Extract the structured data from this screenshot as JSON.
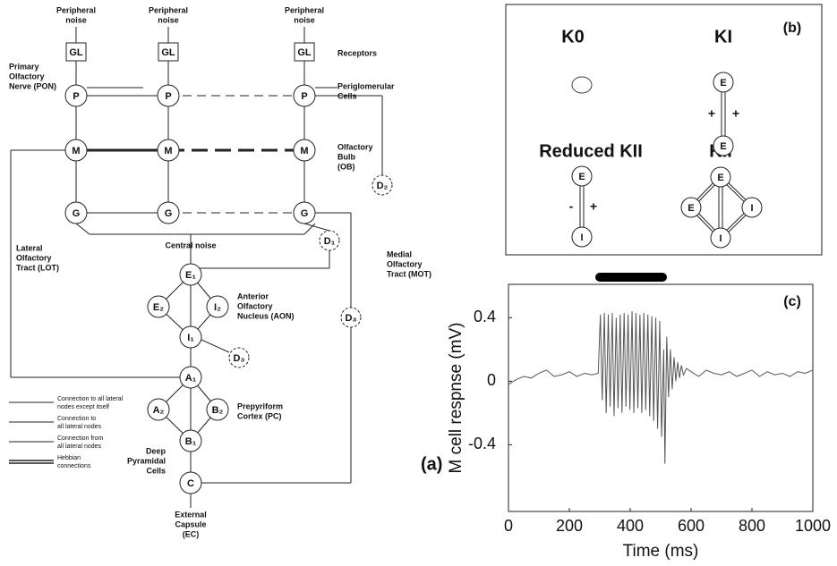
{
  "panel_a": {
    "labels": {
      "noise_1": [
        "Peripheral",
        "noise"
      ],
      "noise_2": [
        "Peripheral",
        "noise"
      ],
      "noise_3": [
        "Peripheral",
        "noise"
      ],
      "receptors": [
        "Receptors"
      ],
      "pon": [
        "Primary",
        "Olfactory",
        "Nerve (PON)"
      ],
      "pg": [
        "Periglomerular",
        "Cells"
      ],
      "ob": [
        "Olfactory",
        "Bulb",
        "(OB)"
      ],
      "lot": [
        "Lateral",
        "Olfactory",
        "Tract (LOT)"
      ],
      "central": [
        "Central noise"
      ],
      "mot": [
        "Medial",
        "Olfactory",
        "Tract (MOT)"
      ],
      "aon": [
        "Anterior",
        "Olfactory",
        "Nucleus (AON)"
      ],
      "pc": [
        "Prepyriform",
        "Cortex (PC)"
      ],
      "deep": [
        "Deep",
        "Pyramidal",
        "Cells"
      ],
      "ec": [
        "External",
        "Capsule",
        "(EC)"
      ]
    },
    "nodes": [
      "GL",
      "GL",
      "GL",
      "P",
      "P",
      "P",
      "M",
      "M",
      "M",
      "G",
      "G",
      "G",
      "D₂",
      "D₁",
      "D₃",
      "D₃",
      "E₁",
      "E₂",
      "I₂",
      "I₁",
      "A₁",
      "A₂",
      "B₂",
      "B₁",
      "C"
    ],
    "legend": [
      [
        "Connection to all lateral",
        "nodes except itself"
      ],
      [
        "Connection to",
        "all lateral nodes"
      ],
      [
        "Connection from",
        "all lateral nodes"
      ],
      [
        "Hebbian",
        "connections"
      ]
    ],
    "panel_label": "(a)"
  },
  "panel_b": {
    "titles": [
      "K0",
      "KI",
      "Reduced KII",
      "KII"
    ],
    "panel_label": "(b)",
    "nodes": [
      "E",
      "E",
      "E",
      "I",
      "E",
      "E",
      "I",
      "I"
    ],
    "signs": [
      "+",
      "+",
      "-",
      "+"
    ]
  },
  "chart_data": {
    "type": "line",
    "panel_label": "(c)",
    "x_label": "Time (ms)",
    "y_label": "M cell respnse (mV)",
    "xlim": [
      0,
      1000
    ],
    "ylim": [
      -0.82,
      0.61
    ],
    "xticks": [
      0,
      200,
      400,
      600,
      800,
      1000
    ],
    "yticks": [
      0.4,
      0,
      -0.4
    ],
    "series": [
      {
        "color": "#555555",
        "x": [
          0,
          25,
          50,
          75,
          100,
          125,
          150,
          175,
          200,
          225,
          250,
          275,
          295,
          302,
          308,
          315,
          321,
          328,
          334,
          341,
          347,
          354,
          360,
          367,
          373,
          380,
          386,
          393,
          399,
          406,
          412,
          419,
          425,
          432,
          438,
          445,
          451,
          458,
          464,
          471,
          477,
          484,
          490,
          497,
          503,
          510,
          514,
          520,
          526,
          532,
          538,
          544,
          550,
          556,
          562,
          568,
          575,
          585,
          600,
          625,
          650,
          675,
          700,
          725,
          750,
          775,
          800,
          825,
          850,
          875,
          900,
          925,
          950,
          975,
          1000
        ],
        "values": [
          -0.02,
          0.01,
          0.03,
          0.02,
          0.05,
          0.07,
          0.03,
          0.04,
          0.06,
          0.03,
          0.05,
          0.04,
          0.05,
          0.42,
          -0.12,
          0.43,
          -0.2,
          0.42,
          -0.16,
          0.43,
          -0.22,
          0.4,
          -0.17,
          0.42,
          -0.2,
          0.43,
          -0.16,
          0.42,
          -0.18,
          0.44,
          -0.2,
          0.43,
          -0.17,
          0.42,
          -0.2,
          0.43,
          -0.18,
          0.42,
          -0.22,
          0.41,
          -0.25,
          0.4,
          -0.3,
          0.38,
          -0.35,
          0.2,
          -0.52,
          0.28,
          -0.1,
          0.2,
          -0.05,
          0.15,
          0.0,
          0.12,
          0.02,
          0.1,
          0.04,
          0.08,
          0.06,
          0.03,
          0.07,
          0.05,
          0.04,
          0.06,
          0.03,
          0.05,
          0.07,
          0.03,
          0.06,
          0.04,
          0.05,
          0.03,
          0.06,
          0.05,
          0.07
        ]
      }
    ]
  }
}
